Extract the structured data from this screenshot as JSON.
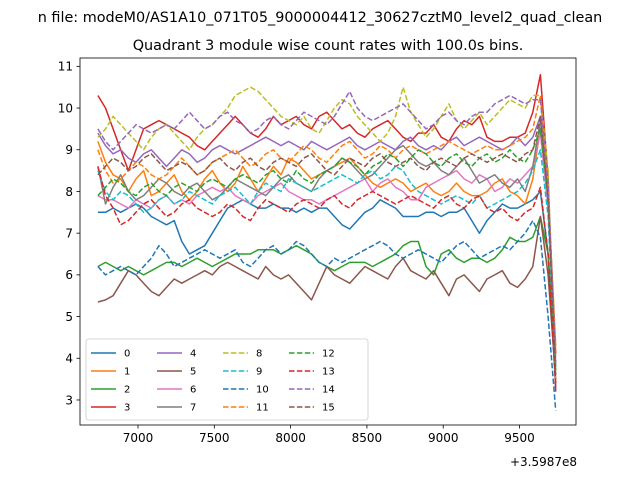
{
  "figure": {
    "suptitle": "n file: modeM0/AS1A10_071T05_9000004412_30627cztM0_level2_quad_clean",
    "title": "Quadrant 3 module wise count rates with 100.0s bins.",
    "offset_text": "+3.5987e8"
  },
  "chart_data": {
    "type": "line",
    "title": "Quadrant 3 module wise count rates with 100.0s bins.",
    "xlabel": "",
    "ylabel": "",
    "x_offset": 359870000,
    "xlim": [
      6620,
      9870
    ],
    "ylim": [
      2.4,
      11.2
    ],
    "xticks": [
      7000,
      7500,
      8000,
      8500,
      9000,
      9500
    ],
    "yticks": [
      3,
      4,
      5,
      6,
      7,
      8,
      9,
      10,
      11
    ],
    "grid": false,
    "legend": "lower-left",
    "x": [
      6737,
      6787,
      6837,
      6887,
      6937,
      6987,
      7037,
      7087,
      7137,
      7187,
      7237,
      7287,
      7337,
      7387,
      7437,
      7487,
      7537,
      7587,
      7637,
      7687,
      7737,
      7787,
      7837,
      7887,
      7937,
      7987,
      8037,
      8087,
      8137,
      8187,
      8237,
      8287,
      8337,
      8387,
      8437,
      8487,
      8537,
      8587,
      8637,
      8687,
      8737,
      8787,
      8837,
      8887,
      8937,
      8987,
      9037,
      9087,
      9137,
      9187,
      9237,
      9287,
      9337,
      9387,
      9437,
      9487,
      9537,
      9587,
      9637,
      9687,
      9737
    ],
    "series": [
      {
        "name": "0",
        "style": "solid",
        "color": "#1f77b4",
        "values": [
          7.5,
          7.5,
          7.6,
          7.5,
          7.6,
          7.7,
          7.6,
          7.4,
          7.3,
          7.2,
          7.3,
          6.8,
          6.5,
          6.6,
          6.7,
          7.0,
          7.3,
          7.6,
          7.7,
          7.8,
          7.7,
          7.6,
          7.6,
          7.7,
          7.6,
          7.6,
          7.5,
          7.6,
          7.5,
          7.6,
          7.6,
          7.4,
          7.2,
          7.1,
          7.3,
          7.5,
          7.6,
          7.8,
          7.7,
          7.6,
          7.4,
          7.4,
          7.4,
          7.5,
          7.5,
          7.4,
          7.5,
          7.5,
          7.6,
          7.3,
          7.0,
          7.3,
          7.5,
          7.7,
          7.6,
          7.6,
          7.7,
          7.8,
          8.0,
          6.5,
          3.3
        ]
      },
      {
        "name": "1",
        "style": "solid",
        "color": "#ff7f0e",
        "values": [
          9.2,
          8.7,
          8.4,
          8.3,
          8.0,
          8.3,
          8.5,
          7.9,
          8.0,
          8.2,
          8.4,
          8.0,
          7.8,
          8.0,
          8.3,
          8.5,
          8.2,
          8.0,
          8.2,
          8.6,
          8.3,
          8.0,
          8.3,
          8.6,
          8.4,
          8.8,
          8.7,
          8.5,
          8.3,
          8.4,
          8.5,
          8.6,
          8.7,
          8.8,
          8.6,
          8.4,
          8.2,
          8.1,
          8.2,
          8.3,
          8.2,
          8.0,
          8.1,
          8.2,
          8.0,
          7.9,
          8.0,
          8.2,
          8.0,
          7.9,
          7.9,
          8.0,
          8.2,
          8.3,
          8.0,
          7.9,
          7.7,
          8.3,
          9.5,
          8.0,
          4.3
        ]
      },
      {
        "name": "2",
        "style": "solid",
        "color": "#2ca02c",
        "values": [
          6.2,
          6.3,
          6.2,
          6.1,
          6.2,
          6.1,
          6.0,
          6.1,
          6.2,
          6.3,
          6.3,
          6.2,
          6.3,
          6.4,
          6.3,
          6.2,
          6.3,
          6.4,
          6.5,
          6.5,
          6.5,
          6.6,
          6.6,
          6.6,
          6.5,
          6.6,
          6.7,
          6.6,
          6.5,
          6.3,
          6.2,
          6.1,
          6.2,
          6.3,
          6.3,
          6.3,
          6.2,
          6.3,
          6.4,
          6.5,
          6.7,
          6.8,
          6.8,
          6.2,
          6.0,
          6.5,
          6.6,
          6.4,
          6.3,
          6.4,
          6.4,
          6.3,
          6.4,
          6.6,
          6.9,
          6.8,
          6.8,
          6.9,
          7.4,
          6.5,
          3.8
        ]
      },
      {
        "name": "3",
        "style": "solid",
        "color": "#d62728",
        "values": [
          10.3,
          10.0,
          9.5,
          9.0,
          8.5,
          9.0,
          9.5,
          9.6,
          9.7,
          9.6,
          9.5,
          9.4,
          9.3,
          9.1,
          9.0,
          9.2,
          9.4,
          9.6,
          9.8,
          9.6,
          9.4,
          9.3,
          9.5,
          9.8,
          9.6,
          9.7,
          9.8,
          9.6,
          9.5,
          9.8,
          9.9,
          9.7,
          9.5,
          9.6,
          9.4,
          9.3,
          9.5,
          9.6,
          9.7,
          9.5,
          9.3,
          9.2,
          9.4,
          9.4,
          9.6,
          9.3,
          9.2,
          9.5,
          9.7,
          9.6,
          9.8,
          9.3,
          9.2,
          9.2,
          9.3,
          9.3,
          9.4,
          9.9,
          10.8,
          8.3,
          3.2
        ]
      },
      {
        "name": "4",
        "style": "solid",
        "color": "#9467bd",
        "values": [
          9.4,
          9.1,
          8.9,
          9.0,
          8.8,
          8.7,
          8.9,
          9.0,
          8.8,
          8.6,
          8.8,
          9.0,
          8.9,
          8.7,
          8.8,
          9.0,
          9.1,
          9.0,
          8.9,
          9.0,
          9.1,
          9.2,
          9.3,
          9.2,
          9.1,
          9.2,
          9.1,
          9.0,
          9.2,
          9.1,
          9.0,
          9.1,
          9.2,
          9.3,
          9.1,
          9.0,
          9.1,
          9.2,
          9.1,
          9.0,
          9.2,
          9.3,
          9.1,
          9.0,
          9.1,
          9.0,
          9.2,
          9.3,
          9.1,
          9.2,
          9.3,
          9.2,
          9.1,
          9.0,
          9.1,
          9.3,
          9.1,
          9.3,
          9.8,
          8.0,
          4.1
        ]
      },
      {
        "name": "5",
        "style": "solid",
        "color": "#8c564b",
        "values": [
          5.35,
          5.4,
          5.5,
          5.8,
          6.1,
          6.0,
          5.8,
          5.6,
          5.5,
          5.7,
          5.9,
          5.8,
          5.9,
          6.0,
          6.1,
          6.0,
          6.2,
          6.3,
          6.2,
          6.1,
          6.0,
          5.9,
          6.2,
          6.0,
          5.9,
          6.0,
          5.8,
          5.6,
          5.4,
          5.8,
          6.2,
          6.0,
          5.9,
          5.8,
          6.0,
          6.2,
          6.1,
          6.0,
          5.9,
          6.2,
          6.4,
          6.1,
          6.0,
          5.9,
          6.1,
          5.8,
          5.5,
          5.9,
          6.0,
          5.8,
          5.6,
          5.9,
          6.0,
          6.1,
          5.8,
          5.7,
          5.9,
          6.2,
          7.4,
          6.0,
          3.5
        ]
      },
      {
        "name": "6",
        "style": "solid",
        "color": "#e377c2",
        "values": [
          7.9,
          7.8,
          7.8,
          7.7,
          7.6,
          7.8,
          7.7,
          7.6,
          7.8,
          7.9,
          7.7,
          7.8,
          7.7,
          7.9,
          8.0,
          8.1,
          8.0,
          8.1,
          7.9,
          7.8,
          7.7,
          7.9,
          8.0,
          8.1,
          8.2,
          8.0,
          7.9,
          7.8,
          7.8,
          7.7,
          7.8,
          7.9,
          8.0,
          8.1,
          8.2,
          8.3,
          8.0,
          8.2,
          8.3,
          8.1,
          8.0,
          7.8,
          7.8,
          8.1,
          8.2,
          8.3,
          8.4,
          8.5,
          8.3,
          8.2,
          8.4,
          8.3,
          8.0,
          8.1,
          8.3,
          8.2,
          8.4,
          8.6,
          9.4,
          7.6,
          3.9
        ]
      },
      {
        "name": "7",
        "style": "solid",
        "color": "#7f7f7f",
        "values": [
          8.6,
          7.7,
          8.1,
          8.4,
          8.0,
          7.8,
          7.9,
          8.1,
          8.3,
          8.2,
          8.0,
          7.9,
          8.1,
          8.2,
          8.0,
          7.8,
          7.9,
          8.1,
          8.3,
          8.2,
          8.1,
          8.0,
          7.9,
          8.1,
          8.3,
          8.4,
          8.2,
          8.1,
          8.0,
          8.3,
          8.5,
          8.6,
          8.8,
          8.7,
          8.5,
          8.3,
          8.4,
          8.6,
          8.8,
          9.0,
          9.1,
          8.9,
          8.7,
          8.6,
          8.7,
          8.5,
          8.4,
          8.6,
          8.8,
          8.5,
          8.2,
          8.3,
          8.4,
          8.2,
          8.1,
          8.3,
          8.0,
          8.6,
          9.7,
          7.8,
          4.1
        ]
      },
      {
        "name": "8",
        "style": "dashed",
        "color": "#bcbd22",
        "values": [
          9.3,
          9.5,
          9.8,
          9.6,
          9.4,
          9.2,
          9.0,
          9.3,
          9.5,
          9.6,
          9.4,
          9.2,
          9.0,
          9.3,
          9.5,
          9.6,
          9.8,
          10.0,
          10.3,
          10.4,
          10.5,
          10.4,
          10.2,
          10.0,
          9.8,
          9.7,
          9.6,
          9.8,
          9.5,
          9.4,
          9.7,
          10.0,
          10.2,
          10.1,
          9.8,
          9.6,
          9.4,
          9.2,
          9.4,
          9.8,
          10.5,
          9.9,
          9.6,
          9.3,
          9.5,
          9.8,
          10.1,
          9.7,
          9.5,
          9.7,
          9.9,
          9.6,
          9.8,
          10.0,
          10.2,
          10.1,
          10.0,
          10.3,
          10.3,
          8.5,
          3.4
        ]
      },
      {
        "name": "9",
        "style": "dashed",
        "color": "#17becf",
        "values": [
          8.5,
          8.0,
          7.8,
          8.0,
          7.9,
          7.7,
          7.5,
          7.6,
          7.8,
          7.9,
          7.7,
          7.8,
          8.0,
          7.9,
          7.8,
          7.7,
          7.9,
          8.0,
          8.1,
          7.9,
          7.7,
          8.0,
          8.2,
          8.1,
          8.0,
          8.3,
          8.2,
          8.1,
          8.0,
          8.1,
          8.2,
          8.3,
          8.4,
          8.3,
          8.2,
          8.4,
          8.5,
          8.3,
          8.4,
          8.6,
          8.5,
          8.2,
          8.0,
          7.9,
          7.8,
          7.7,
          7.8,
          7.9,
          7.8,
          7.7,
          7.9,
          7.6,
          7.7,
          7.8,
          7.9,
          8.0,
          8.2,
          8.5,
          9.0,
          7.4,
          3.6
        ]
      },
      {
        "name": "10",
        "style": "dashed",
        "color": "#1f77b4",
        "values": [
          6.2,
          6.0,
          6.1,
          6.2,
          6.1,
          6.0,
          6.2,
          6.4,
          6.7,
          6.5,
          6.2,
          6.3,
          6.4,
          6.5,
          6.6,
          6.5,
          6.4,
          6.5,
          6.6,
          6.3,
          6.2,
          6.4,
          6.6,
          6.7,
          6.5,
          6.6,
          6.8,
          6.7,
          6.5,
          6.3,
          6.2,
          6.4,
          6.3,
          6.4,
          6.5,
          6.6,
          6.7,
          6.8,
          6.7,
          6.5,
          6.4,
          6.5,
          6.6,
          6.5,
          6.4,
          6.3,
          6.5,
          6.7,
          6.8,
          6.6,
          6.4,
          6.5,
          6.6,
          6.7,
          6.6,
          6.8,
          7.0,
          7.3,
          6.9,
          5.0,
          2.75
        ]
      },
      {
        "name": "11",
        "style": "dashed",
        "color": "#ff7f0e",
        "values": [
          9.0,
          8.5,
          8.2,
          8.3,
          8.5,
          8.7,
          8.6,
          8.4,
          8.3,
          8.4,
          8.6,
          8.8,
          8.6,
          8.4,
          8.5,
          8.7,
          8.8,
          8.9,
          9.0,
          8.8,
          8.6,
          8.7,
          8.9,
          9.0,
          8.8,
          8.7,
          8.9,
          9.1,
          9.0,
          8.8,
          8.7,
          8.9,
          9.1,
          9.2,
          9.0,
          8.8,
          8.9,
          9.1,
          9.0,
          8.8,
          9.0,
          9.1,
          9.0,
          8.9,
          9.0,
          9.1,
          9.2,
          9.1,
          9.0,
          8.9,
          9.0,
          9.1,
          9.0,
          9.0,
          9.1,
          9.2,
          9.3,
          9.5,
          10.3,
          8.0,
          4.1
        ]
      },
      {
        "name": "12",
        "style": "dashed",
        "color": "#2ca02c",
        "values": [
          7.9,
          8.1,
          8.3,
          8.2,
          8.0,
          7.9,
          8.1,
          8.2,
          8.0,
          7.9,
          8.1,
          8.2,
          8.1,
          8.0,
          8.2,
          8.3,
          8.2,
          8.1,
          8.3,
          8.4,
          8.3,
          8.2,
          8.4,
          8.5,
          8.3,
          8.2,
          8.5,
          8.3,
          8.2,
          8.4,
          8.5,
          8.6,
          8.8,
          8.7,
          8.6,
          8.4,
          8.6,
          8.7,
          8.9,
          8.8,
          8.6,
          8.8,
          9.0,
          8.9,
          8.7,
          8.6,
          8.8,
          8.9,
          8.7,
          8.6,
          8.8,
          8.9,
          8.7,
          8.8,
          9.0,
          8.8,
          8.7,
          9.0,
          9.5,
          7.9,
          3.7
        ]
      },
      {
        "name": "13",
        "style": "dashed",
        "color": "#d62728",
        "values": [
          8.6,
          7.9,
          7.6,
          7.2,
          7.3,
          7.5,
          7.7,
          7.8,
          7.6,
          7.4,
          7.5,
          7.7,
          7.8,
          7.6,
          7.5,
          7.4,
          7.5,
          7.7,
          7.6,
          7.4,
          7.3,
          7.6,
          7.8,
          7.7,
          7.6,
          7.5,
          7.7,
          7.8,
          7.7,
          7.6,
          7.8,
          7.9,
          7.7,
          7.6,
          7.8,
          7.9,
          8.0,
          7.9,
          7.8,
          7.7,
          7.8,
          7.9,
          7.8,
          7.7,
          7.6,
          7.8,
          7.9,
          7.7,
          7.6,
          7.8,
          7.9,
          7.6,
          7.5,
          7.6,
          7.4,
          7.3,
          7.5,
          7.6,
          8.1,
          6.5,
          3.4
        ]
      },
      {
        "name": "14",
        "style": "dashed",
        "color": "#9467bd",
        "values": [
          9.5,
          9.2,
          9.0,
          9.2,
          9.4,
          9.6,
          9.5,
          9.4,
          9.5,
          9.6,
          9.5,
          9.7,
          9.9,
          9.7,
          9.5,
          9.6,
          9.8,
          9.9,
          9.7,
          9.6,
          9.4,
          9.5,
          9.7,
          9.8,
          9.6,
          9.5,
          9.7,
          9.9,
          9.8,
          9.7,
          9.6,
          9.8,
          10.1,
          10.4,
          10.0,
          9.8,
          9.7,
          9.8,
          9.9,
          10.0,
          10.1,
          9.9,
          9.7,
          9.5,
          9.6,
          9.8,
          9.9,
          9.7,
          9.6,
          9.8,
          9.9,
          9.9,
          10.1,
          10.2,
          10.3,
          10.2,
          10.1,
          10.2,
          10.2,
          8.2,
          3.9
        ]
      },
      {
        "name": "15",
        "style": "dashed",
        "color": "#8c564b",
        "values": [
          8.4,
          8.6,
          8.8,
          8.7,
          8.5,
          8.6,
          8.8,
          8.9,
          8.7,
          8.5,
          8.6,
          8.7,
          8.6,
          8.4,
          8.5,
          8.7,
          8.8,
          8.6,
          8.5,
          8.7,
          8.8,
          8.6,
          8.5,
          8.7,
          8.8,
          8.7,
          8.6,
          8.8,
          8.9,
          8.7,
          8.5,
          8.4,
          8.6,
          8.8,
          8.7,
          8.6,
          8.8,
          8.9,
          8.7,
          8.6,
          8.7,
          8.8,
          8.6,
          8.5,
          8.7,
          8.8,
          8.7,
          8.6,
          8.8,
          8.9,
          8.8,
          8.7,
          8.8,
          8.9,
          8.8,
          8.7,
          8.9,
          9.0,
          9.8,
          7.8,
          3.6
        ]
      }
    ]
  }
}
